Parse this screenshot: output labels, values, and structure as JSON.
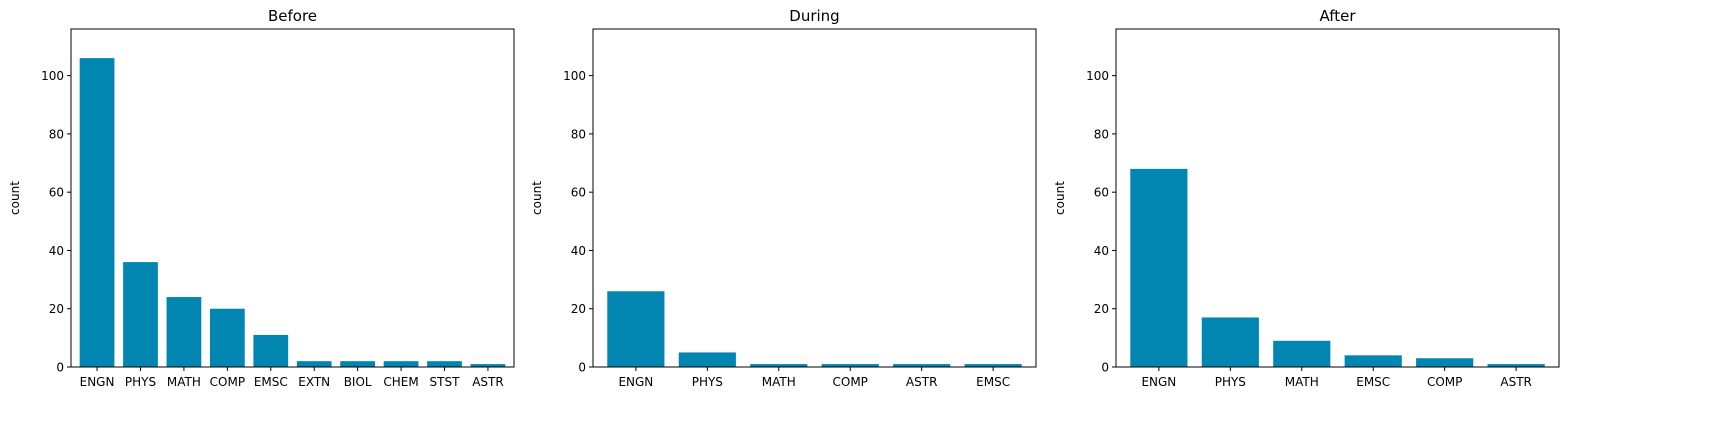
{
  "chart_data": [
    {
      "type": "bar",
      "title": "Before",
      "xlabel": "",
      "ylabel": "count",
      "ylim": [
        0,
        116
      ],
      "yticks": [
        0,
        20,
        40,
        60,
        80,
        100
      ],
      "categories": [
        "ENGN",
        "PHYS",
        "MATH",
        "COMP",
        "EMSC",
        "EXTN",
        "BIOL",
        "CHEM",
        "STST",
        "ASTR"
      ],
      "values": [
        106,
        36,
        24,
        20,
        11,
        2,
        2,
        2,
        2,
        1
      ],
      "color": "#0086b0"
    },
    {
      "type": "bar",
      "title": "During",
      "xlabel": "",
      "ylabel": "count",
      "ylim": [
        0,
        116
      ],
      "yticks": [
        0,
        20,
        40,
        60,
        80,
        100
      ],
      "categories": [
        "ENGN",
        "PHYS",
        "MATH",
        "COMP",
        "ASTR",
        "EMSC"
      ],
      "values": [
        26,
        5,
        1,
        1,
        1,
        1
      ],
      "color": "#0086b0"
    },
    {
      "type": "bar",
      "title": "After",
      "xlabel": "",
      "ylabel": "count",
      "ylim": [
        0,
        116
      ],
      "yticks": [
        0,
        20,
        40,
        60,
        80,
        100
      ],
      "categories": [
        "ENGN",
        "PHYS",
        "MATH",
        "EMSC",
        "COMP",
        "ASTR"
      ],
      "values": [
        68,
        17,
        9,
        4,
        3,
        1
      ],
      "color": "#0086b0"
    }
  ]
}
